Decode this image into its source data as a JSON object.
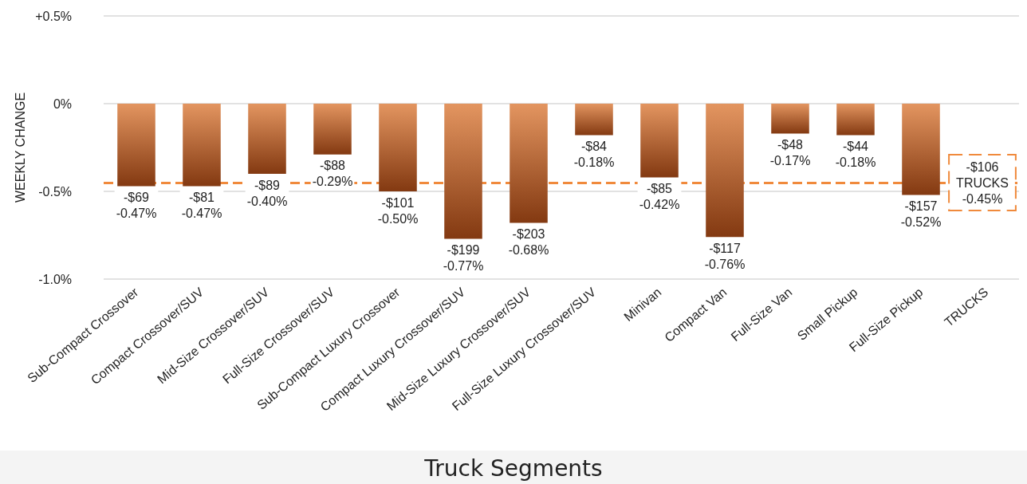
{
  "chart_data": {
    "type": "bar",
    "xlabel": "Truck Segments",
    "ylabel": "WEEKLY CHANGE",
    "categories": [
      "Sub-Compact Crossover",
      "Compact Crossover/SUV",
      "Mid-Size Crossover/SUV",
      "Full-Size Crossover/SUV",
      "Sub-Compact Luxury Crossover",
      "Compact Luxury Crossover/SUV",
      "Mid-Size Luxury Crossover/SUV",
      "Full-Size Luxury Crossover/SUV",
      "Minivan",
      "Compact Van",
      "Full-Size Van",
      "Small Pickup",
      "Full-Size Pickup",
      "TRUCKS"
    ],
    "values": [
      -0.47,
      -0.47,
      -0.4,
      -0.29,
      -0.5,
      -0.77,
      -0.68,
      -0.18,
      -0.42,
      -0.76,
      -0.17,
      -0.18,
      -0.52,
      null
    ],
    "value_labels": [
      "-$69\n-0.47%",
      "-$81\n-0.47%",
      "-$89\n-0.40%",
      "-$88\n-0.29%",
      "-$101\n-0.50%",
      "-$199\n-0.77%",
      "-$203\n-0.68%",
      "-$84\n-0.18%",
      "-$85\n-0.42%",
      "-$117\n-0.76%",
      "-$48\n-0.17%",
      "-$44\n-0.18%",
      "-$157\n-0.52%",
      null
    ],
    "color": "#c0622a",
    "ylim": [
      -1.0,
      0.5
    ],
    "yticks": [
      {
        "value": 0.5,
        "label": "+0.5%"
      },
      {
        "value": 0,
        "label": "0%"
      },
      {
        "value": -0.5,
        "label": "-0.5%"
      },
      {
        "value": -1.0,
        "label": "-1.0%"
      }
    ],
    "grid": "y",
    "ref_lines": [
      {
        "axis": "y",
        "value": -0.45,
        "label": "-$106\nTRUCKS\n-0.45%",
        "color": "#f08a3c",
        "line_style": "dashed"
      }
    ]
  }
}
